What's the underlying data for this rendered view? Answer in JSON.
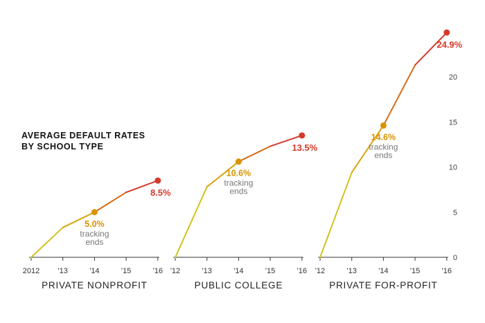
{
  "colors": {
    "start": "#d2c21b",
    "mid": "#d99200",
    "end": "#d63a2a",
    "axis": "#333333",
    "text": "#222222",
    "note": "#777777"
  },
  "chart_data": {
    "type": "line",
    "title_lines": [
      "AVERAGE DEFAULT RATES",
      "BY SCHOOL TYPE"
    ],
    "ylim": [
      0,
      25
    ],
    "yticks": [
      "0",
      "5",
      "10",
      "15",
      "20"
    ],
    "tracking_note": [
      "tracking",
      "ends"
    ],
    "panels": [
      {
        "name": "PRIVATE NONPROFIT",
        "x": [
          "2012",
          "'13",
          "'14",
          "'15",
          "'16"
        ],
        "values": [
          0,
          3.3,
          5.0,
          7.2,
          8.5
        ],
        "tracking_label": "5.0%",
        "end_label": "8.5%"
      },
      {
        "name": "PUBLIC COLLEGE",
        "x": [
          "'12",
          "'13",
          "'14",
          "'15",
          "'16"
        ],
        "values": [
          0,
          7.8,
          10.6,
          12.3,
          13.5
        ],
        "tracking_label": "10.6%",
        "end_label": "13.5%"
      },
      {
        "name": "PRIVATE FOR-PROFIT",
        "x": [
          "'12",
          "'13",
          "'14",
          "'15",
          "'16"
        ],
        "values": [
          0,
          9.4,
          14.6,
          21.3,
          24.9
        ],
        "tracking_label": "14.6%",
        "end_label": "24.9%"
      }
    ]
  }
}
